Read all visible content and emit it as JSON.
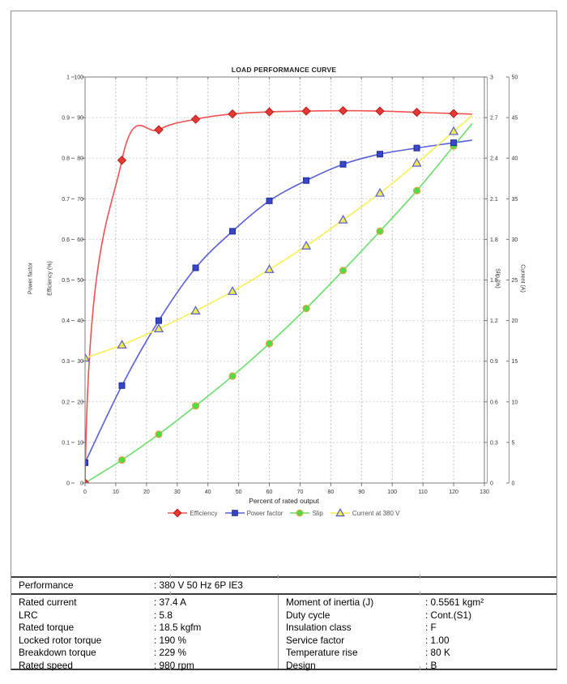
{
  "chart_data": {
    "type": "line",
    "title": "LOAD PERFORMANCE CURVE",
    "xlabel": "Percent of rated output",
    "x_axis": {
      "min": 0,
      "max": 130,
      "tick_labels": [
        "0",
        "10",
        "20",
        "30",
        "40",
        "50",
        "60",
        "70",
        "80",
        "90",
        "100",
        "110",
        "120",
        "130"
      ]
    },
    "axes": {
      "power_factor": {
        "title": "Power factor",
        "min": 0,
        "max": 1,
        "side": "left",
        "tick_labels": [
          "0",
          "0.1",
          "0.2",
          "0.3",
          "0.4",
          "0.5",
          "0.6",
          "0.7",
          "0.8",
          "0.9",
          "1"
        ]
      },
      "efficiency": {
        "title": "Efficiency (%)",
        "min": 0,
        "max": 100,
        "side": "left",
        "tick_labels": [
          "0",
          "10",
          "20",
          "30",
          "40",
          "50",
          "60",
          "70",
          "80",
          "90",
          "100"
        ]
      },
      "slip": {
        "title": "Slip (%)",
        "min": 0,
        "max": 3,
        "side": "right",
        "tick_labels": [
          "0",
          "0.3",
          "0.6",
          "0.9",
          "1.2",
          "1.5",
          "1.8",
          "2.1",
          "2.4",
          "2.7",
          "3"
        ]
      },
      "current": {
        "title": "Current (A)",
        "min": 0,
        "max": 50,
        "side": "right",
        "tick_labels": [
          "0",
          "5",
          "10",
          "15",
          "20",
          "25",
          "30",
          "35",
          "40",
          "45",
          "50"
        ]
      }
    },
    "x": [
      0,
      12,
      24,
      36,
      48,
      60,
      72,
      84,
      96,
      108,
      120
    ],
    "series": [
      {
        "name": "Efficiency",
        "axis": "efficiency",
        "marker": "diamond",
        "line_color": "#ef5350",
        "marker_fill": "#e53935",
        "marker_stroke": "#b71c1c",
        "values": [
          0,
          79.5,
          87,
          89.6,
          90.9,
          91.4,
          91.6,
          91.7,
          91.6,
          91.3,
          91
        ]
      },
      {
        "name": "Power factor",
        "axis": "power_factor",
        "marker": "square",
        "line_color": "#5a5fd8",
        "marker_fill": "#3946c8",
        "marker_stroke": "#1f2d99",
        "values": [
          0.05,
          0.24,
          0.4,
          0.53,
          0.62,
          0.695,
          0.745,
          0.785,
          0.81,
          0.825,
          0.838
        ]
      },
      {
        "name": "Slip",
        "axis": "slip",
        "marker": "circle",
        "line_color": "#69de69",
        "marker_fill": "#4ade4a",
        "marker_stroke": "#e0a33c",
        "values": [
          0,
          0.17,
          0.36,
          0.57,
          0.79,
          1.03,
          1.29,
          1.57,
          1.86,
          2.16,
          2.49
        ]
      },
      {
        "name": "Current at 380 V",
        "axis": "current",
        "marker": "triangle",
        "line_color": "#f7ef55",
        "marker_fill": "#f2ea55",
        "marker_stroke": "#5560d0",
        "values": [
          15.4,
          17,
          19,
          21.2,
          23.6,
          26.3,
          29.2,
          32.4,
          35.7,
          39.4,
          43.3
        ]
      }
    ],
    "grid": {
      "vertical_color": "#bdbdbd",
      "horizontal_color": "#d2d2d2",
      "style": "dashed"
    },
    "plot_border_color": "#7d7d7d"
  },
  "table": {
    "performance": {
      "label": "Performance",
      "value": ": 380 V 50 Hz 6P IE3"
    },
    "left_rows": [
      {
        "label": "Rated current",
        "value": ": 37.4 A"
      },
      {
        "label": "LRC",
        "value": ": 5.8"
      },
      {
        "label": "Rated torque",
        "value": ": 18.5 kgfm"
      },
      {
        "label": "Locked rotor torque",
        "value": ": 190 %"
      },
      {
        "label": "Breakdown torque",
        "value": ": 229 %"
      },
      {
        "label": "Rated speed",
        "value": ": 980 rpm"
      }
    ],
    "right_rows": [
      {
        "label": "Moment of inertia (J)",
        "value": ": 0.5561 kgm²"
      },
      {
        "label": "Duty cycle",
        "value": ": Cont.(S1)"
      },
      {
        "label": "Insulation class",
        "value": ": F"
      },
      {
        "label": "Service factor",
        "value": ": 1.00"
      },
      {
        "label": "Temperature rise",
        "value": ": 80 K"
      },
      {
        "label": "Design",
        "value": ": B"
      }
    ]
  }
}
